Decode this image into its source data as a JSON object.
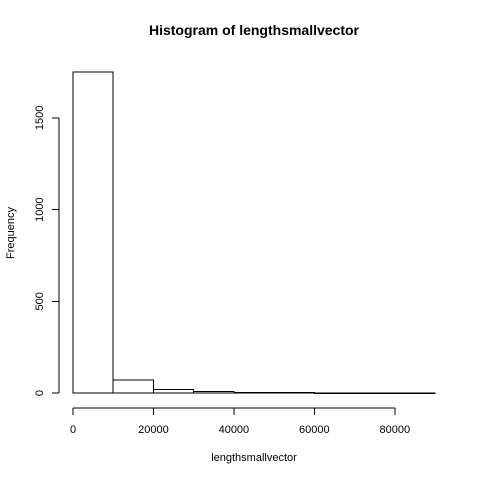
{
  "chart_data": {
    "type": "bar",
    "title": "Histogram of lengthsmallvector",
    "xlabel": "lengthsmallvector",
    "ylabel": "Frequency",
    "bin_edges": [
      0,
      10000,
      20000,
      30000,
      40000,
      50000,
      60000,
      70000,
      80000,
      90000
    ],
    "values": [
      1750,
      70,
      18,
      8,
      4,
      2,
      1,
      1,
      1
    ],
    "xlim": [
      0,
      90000
    ],
    "ylim": [
      0,
      1750
    ],
    "xticks": [
      0,
      20000,
      40000,
      60000,
      80000
    ],
    "xtick_labels": [
      "0",
      "20000",
      "40000",
      "60000",
      "80000"
    ],
    "yticks": [
      0,
      500,
      1000,
      1500
    ],
    "ytick_labels": [
      "0",
      "500",
      "1000",
      "1500"
    ],
    "grid": false,
    "legend": "none",
    "colors": {
      "bar_fill": "#ffffff",
      "bar_stroke": "#000000"
    }
  }
}
